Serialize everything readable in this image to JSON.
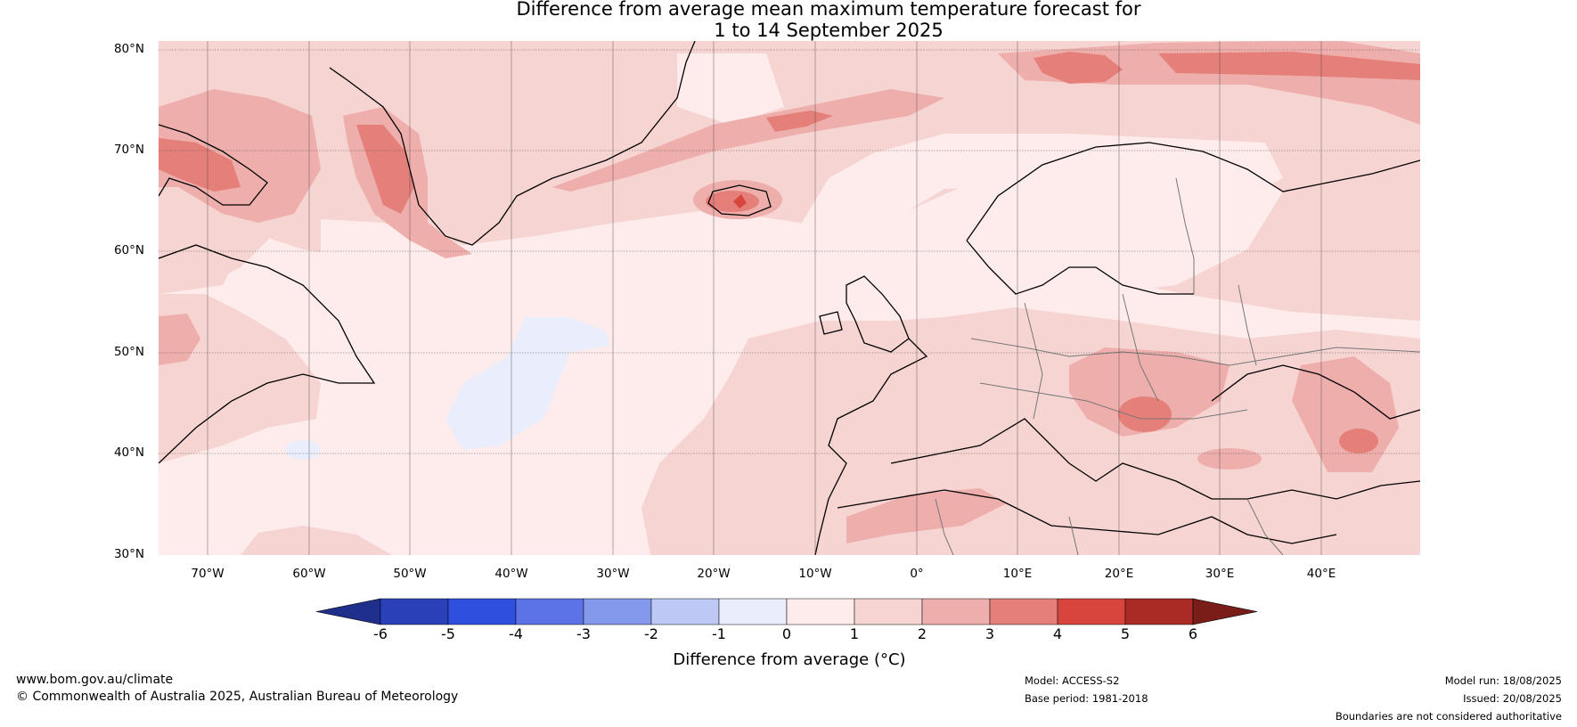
{
  "title": {
    "line1": "Difference from average mean maximum temperature forecast for",
    "line2": "1 to 14 September 2025"
  },
  "axes": {
    "lat_labels": [
      "80°N",
      "70°N",
      "60°N",
      "50°N",
      "40°N",
      "30°N"
    ],
    "lon_labels": [
      "70°W",
      "60°W",
      "50°W",
      "40°W",
      "30°W",
      "20°W",
      "10°W",
      "0°",
      "10°E",
      "20°E",
      "30°E",
      "40°E"
    ]
  },
  "colorbar": {
    "ticks": [
      "-6",
      "-5",
      "-4",
      "-3",
      "-2",
      "-1",
      "0",
      "1",
      "2",
      "3",
      "4",
      "5",
      "6"
    ],
    "label": "Difference from average (°C)",
    "colors": [
      "#1e2f8c",
      "#2a40b8",
      "#2f4fdf",
      "#5b73e6",
      "#8599ec",
      "#bec8f4",
      "#e9edfc",
      "#fdeceb",
      "#f6d4d2",
      "#eeaeab",
      "#e57f7a",
      "#d8453c",
      "#aa2b25",
      "#7a1c18"
    ]
  },
  "footer": {
    "website": "www.bom.gov.au/climate",
    "copyright": "© Commonwealth of Australia 2025, Australian Bureau of Meteorology",
    "model": "Model: ACCESS-S2",
    "base_period": "Base period: 1981-2018",
    "model_run": "Model run: 18/08/2025",
    "issued": "Issued: 20/08/2025",
    "disclaimer": "Boundaries are not considered authoritative"
  }
}
